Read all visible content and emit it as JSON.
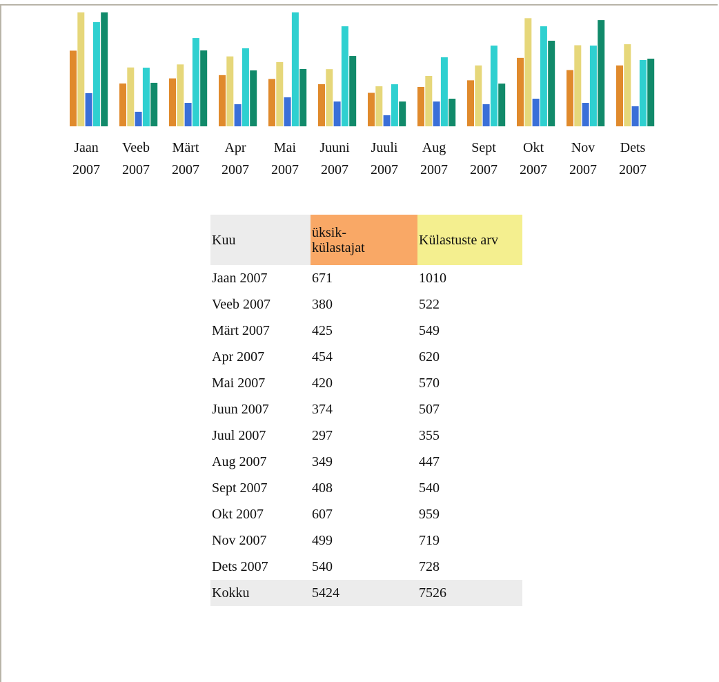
{
  "chart_data": {
    "type": "bar",
    "categories": [
      "Jaan 2007",
      "Veeb 2007",
      "Märt 2007",
      "Apr 2007",
      "Mai 2007",
      "Juuni 2007",
      "Juuli 2007",
      "Aug 2007",
      "Sept 2007",
      "Okt 2007",
      "Nov 2007",
      "Dets 2007"
    ],
    "series": [
      {
        "color": "#e08a2c",
        "values": [
          671,
          380,
          425,
          454,
          420,
          374,
          297,
          349,
          408,
          607,
          499,
          540
        ]
      },
      {
        "color": "#e6d77a",
        "values": [
          1010,
          522,
          549,
          620,
          570,
          507,
          355,
          447,
          540,
          959,
          719,
          728
        ]
      },
      {
        "color": "#3a6fd8",
        "values": [
          294,
          129,
          208,
          196,
          257,
          220,
          98,
          220,
          196,
          245,
          208,
          178
        ]
      },
      {
        "color": "#2fd0d0",
        "values": [
          924,
          520,
          783,
          692,
          1010,
          887,
          373,
          612,
          716,
          887,
          716,
          588
        ]
      },
      {
        "color": "#118a6a",
        "values": [
          1010,
          386,
          673,
          496,
          508,
          624,
          220,
          245,
          379,
          759,
          942,
          600
        ]
      }
    ]
  },
  "table": {
    "header": [
      "Kuu",
      "üksik-külastajat",
      "Külastuste arv"
    ],
    "rows": [
      [
        "Jaan 2007",
        "671",
        "1010"
      ],
      [
        "Veeb 2007",
        "380",
        "522"
      ],
      [
        "Märt 2007",
        "425",
        "549"
      ],
      [
        "Apr 2007",
        "454",
        "620"
      ],
      [
        "Mai 2007",
        "420",
        "570"
      ],
      [
        "Juun 2007",
        "374",
        "507"
      ],
      [
        "Juul 2007",
        "297",
        "355"
      ],
      [
        "Aug 2007",
        "349",
        "447"
      ],
      [
        "Sept 2007",
        "408",
        "540"
      ],
      [
        "Okt 2007",
        "607",
        "959"
      ],
      [
        "Nov 2007",
        "499",
        "719"
      ],
      [
        "Dets 2007",
        "540",
        "728"
      ]
    ],
    "total": [
      "Kokku",
      "5424",
      "7526"
    ]
  }
}
